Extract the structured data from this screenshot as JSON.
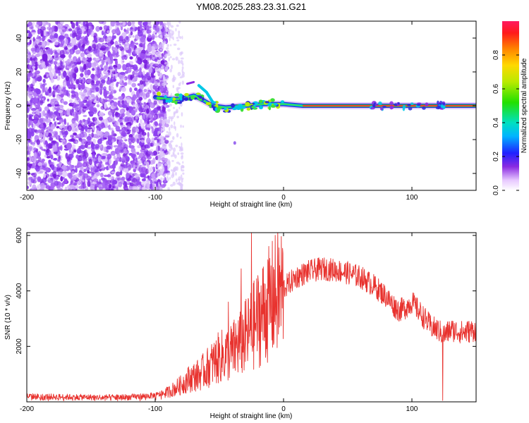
{
  "title": "YM08.2025.283.23.31.G21",
  "chart_data": [
    {
      "type": "heatmap",
      "name": "spectrogram",
      "xlabel": "Height of straight line (km)",
      "ylabel": "Frequency (Hz)",
      "xlim": [
        -200,
        150
      ],
      "ylim": [
        -50,
        50
      ],
      "xticks": [
        -200,
        -100,
        0,
        100
      ],
      "yticks": [
        -40,
        -20,
        0,
        20,
        40
      ],
      "colorbar": {
        "label": "Normalized spectral amplitude",
        "range": [
          0,
          1
        ],
        "ticks": [
          0.0,
          0.2,
          0.4,
          0.6,
          0.8
        ]
      },
      "ridge": [
        {
          "x": -100,
          "y": 5
        },
        {
          "x": -90,
          "y": 4
        },
        {
          "x": -80,
          "y": 4
        },
        {
          "x": -70,
          "y": 6
        },
        {
          "x": -62,
          "y": 3
        },
        {
          "x": -55,
          "y": 0
        },
        {
          "x": -45,
          "y": -1
        },
        {
          "x": -30,
          "y": 0
        },
        {
          "x": -15,
          "y": 1
        },
        {
          "x": 0,
          "y": 1
        },
        {
          "x": 15,
          "y": 0
        },
        {
          "x": 150,
          "y": 0
        }
      ]
    },
    {
      "type": "line",
      "name": "snr",
      "xlabel": "Height of straight line (km)",
      "ylabel": "SNR (10 * v/v)",
      "xlim": [
        -200,
        150
      ],
      "ylim": [
        0,
        6100
      ],
      "xticks": [
        -200,
        -100,
        0,
        100
      ],
      "yticks": [
        2000,
        4000,
        6000
      ],
      "series": [
        {
          "name": "SNR",
          "color": "#e8322e",
          "x": [
            -200,
            -180,
            -160,
            -140,
            -120,
            -100,
            -90,
            -80,
            -75,
            -70,
            -65,
            -60,
            -55,
            -50,
            -45,
            -40,
            -35,
            -30,
            -25,
            -20,
            -15,
            -10,
            -5,
            0,
            10,
            20,
            30,
            40,
            50,
            60,
            70,
            80,
            85,
            90,
            95,
            100,
            110,
            115,
            120,
            125,
            130,
            140,
            150
          ],
          "values": [
            200,
            180,
            170,
            160,
            170,
            230,
            350,
            600,
            800,
            900,
            1000,
            1200,
            1400,
            1600,
            1700,
            1800,
            2100,
            2300,
            2600,
            3000,
            3300,
            3600,
            3900,
            4100,
            4500,
            4700,
            4800,
            4750,
            4650,
            4500,
            4200,
            3800,
            3500,
            3300,
            3400,
            3600,
            3000,
            2700,
            2600,
            2400,
            2600,
            2500,
            2600
          ]
        }
      ],
      "spikes": [
        {
          "x": -25,
          "y": 6100
        },
        {
          "x": -33,
          "y": 4800
        },
        {
          "x": -43,
          "y": 3600
        },
        {
          "x": 124,
          "y": 50
        }
      ]
    }
  ]
}
